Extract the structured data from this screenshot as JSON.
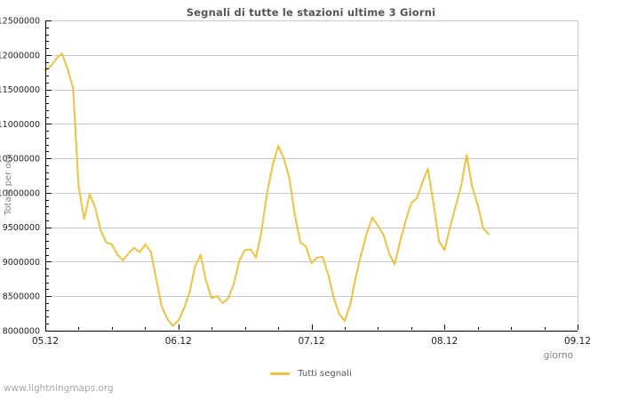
{
  "page": {
    "watermark": "www.lightningmaps.org"
  },
  "chart_data": {
    "type": "line",
    "title": "Segnali di tutte le stazioni ultime 3 Giorni",
    "xlabel": "giorno",
    "ylabel": "Totale per ora",
    "legend_position": "bottom-center",
    "grid": "horizontal-major-only",
    "x_tick_labels": [
      "05.12",
      "06.12",
      "07.12",
      "08.12",
      "09.12"
    ],
    "y_tick_labels": [
      "8000000",
      "8500000",
      "9000000",
      "9500000",
      "10000000",
      "10500000",
      "11000000",
      "11500000",
      "12000000",
      "12500000"
    ],
    "ylim": [
      8000000,
      12500000
    ],
    "xlim_days": [
      0,
      4
    ],
    "y_minor_step": 100000,
    "x_minor_step_days": 0.25,
    "colors": {
      "series": "#EDC240",
      "grid": "#c9c9c9",
      "axis": "#000000",
      "tick_label": "#222222",
      "title": "#555558",
      "axis_label": "#828282",
      "watermark": "#a6a6a6",
      "background": "#ffffff"
    },
    "series": [
      {
        "name": "Tutti segnali",
        "color": "#EDC240",
        "x_unit": "hours since 05.12 00:00",
        "points": [
          [
            0,
            11780000
          ],
          [
            1,
            11840000
          ],
          [
            2,
            11950000
          ],
          [
            3,
            12020000
          ],
          [
            4,
            11800000
          ],
          [
            5,
            11520000
          ],
          [
            6,
            10100000
          ],
          [
            7,
            9620000
          ],
          [
            8,
            9980000
          ],
          [
            9,
            9780000
          ],
          [
            10,
            9450000
          ],
          [
            11,
            9280000
          ],
          [
            12,
            9250000
          ],
          [
            13,
            9100000
          ],
          [
            14,
            9020000
          ],
          [
            15,
            9120000
          ],
          [
            16,
            9200000
          ],
          [
            17,
            9140000
          ],
          [
            18,
            9250000
          ],
          [
            19,
            9150000
          ],
          [
            20,
            8750000
          ],
          [
            21,
            8350000
          ],
          [
            22,
            8170000
          ],
          [
            23,
            8070000
          ],
          [
            24,
            8150000
          ],
          [
            25,
            8320000
          ],
          [
            26,
            8550000
          ],
          [
            27,
            8930000
          ],
          [
            28,
            9100000
          ],
          [
            29,
            8720000
          ],
          [
            30,
            8470000
          ],
          [
            31,
            8500000
          ],
          [
            32,
            8400000
          ],
          [
            33,
            8470000
          ],
          [
            34,
            8680000
          ],
          [
            35,
            9020000
          ],
          [
            36,
            9170000
          ],
          [
            37,
            9180000
          ],
          [
            38,
            9060000
          ],
          [
            39,
            9450000
          ],
          [
            40,
            10000000
          ],
          [
            41,
            10400000
          ],
          [
            42,
            10680000
          ],
          [
            43,
            10500000
          ],
          [
            44,
            10220000
          ],
          [
            45,
            9680000
          ],
          [
            46,
            9280000
          ],
          [
            47,
            9220000
          ],
          [
            48,
            8980000
          ],
          [
            49,
            9060000
          ],
          [
            50,
            9070000
          ],
          [
            51,
            8820000
          ],
          [
            52,
            8480000
          ],
          [
            53,
            8240000
          ],
          [
            54,
            8140000
          ],
          [
            55,
            8380000
          ],
          [
            56,
            8780000
          ],
          [
            57,
            9120000
          ],
          [
            58,
            9420000
          ],
          [
            59,
            9640000
          ],
          [
            60,
            9520000
          ],
          [
            61,
            9390000
          ],
          [
            62,
            9120000
          ],
          [
            63,
            8960000
          ],
          [
            64,
            9300000
          ],
          [
            65,
            9600000
          ],
          [
            66,
            9850000
          ],
          [
            67,
            9920000
          ],
          [
            68,
            10150000
          ],
          [
            69,
            10350000
          ],
          [
            70,
            9850000
          ],
          [
            71,
            9300000
          ],
          [
            72,
            9170000
          ],
          [
            73,
            9500000
          ],
          [
            74,
            9800000
          ],
          [
            75,
            10100000
          ],
          [
            76,
            10550000
          ],
          [
            77,
            10080000
          ],
          [
            78,
            9820000
          ],
          [
            79,
            9480000
          ],
          [
            80,
            9400000
          ]
        ]
      }
    ]
  }
}
